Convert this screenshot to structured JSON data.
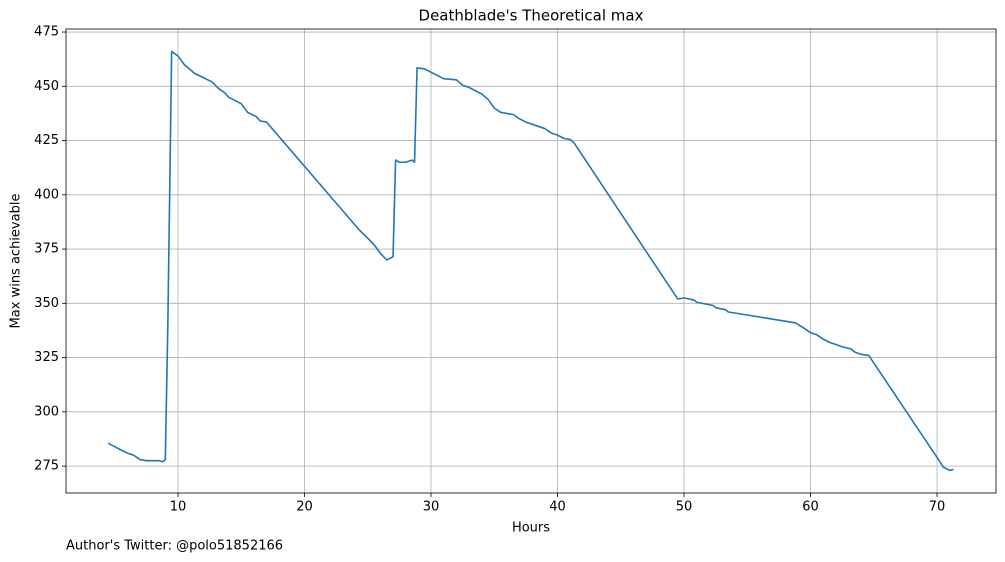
{
  "chart_data": {
    "type": "line",
    "title": "Deathblade's Theoretical max",
    "xlabel": "Hours",
    "ylabel": "Max wins achievable",
    "footnote": "Author's Twitter: @polo51852166",
    "x": [
      4.5,
      5.3,
      6.0,
      6.5,
      7.0,
      7.5,
      8.0,
      8.5,
      8.8,
      9.0,
      9.2,
      9.5,
      10.0,
      10.5,
      11.3,
      12.0,
      12.7,
      13.2,
      13.7,
      14.0,
      15.0,
      15.5,
      16.2,
      16.5,
      17.0,
      24.3,
      25.0,
      25.5,
      26.0,
      26.5,
      27.0,
      27.2,
      27.5,
      28.0,
      28.5,
      28.7,
      28.9,
      29.5,
      30.0,
      30.5,
      31.0,
      32.0,
      32.5,
      33.0,
      33.5,
      34.0,
      34.5,
      35.0,
      35.5,
      36.5,
      37.0,
      37.5,
      38.5,
      39.0,
      39.5,
      40.0,
      40.5,
      41.0,
      41.3,
      49.5,
      50.0,
      50.8,
      51.0,
      52.3,
      52.5,
      53.3,
      53.5,
      58.8,
      59.5,
      60.0,
      60.5,
      61.0,
      61.5,
      62.0,
      62.5,
      63.2,
      63.5,
      64.0,
      64.6,
      70.0,
      70.5,
      71.0,
      71.3
    ],
    "series": [
      {
        "name": "Max wins achievable",
        "color": "#1f77b4",
        "values": [
          285.5,
          283,
          281,
          280,
          278,
          277.5,
          277.5,
          277.5,
          277,
          278,
          340,
          466,
          464,
          460,
          456,
          454,
          452,
          449,
          447,
          445,
          442,
          438,
          436,
          434,
          433.5,
          384,
          380,
          377,
          373,
          370,
          371.5,
          416,
          415,
          415,
          416,
          415,
          458.5,
          458,
          456.5,
          455,
          453.5,
          453,
          450.5,
          449.5,
          448,
          446.5,
          444,
          440,
          438,
          437,
          435,
          433.5,
          431.5,
          430.5,
          428.5,
          427.5,
          426,
          425.5,
          424,
          352,
          352.5,
          351.5,
          350.5,
          349,
          348,
          347,
          346,
          341,
          338.5,
          336.5,
          335.5,
          333.5,
          332,
          331,
          330,
          329,
          327.5,
          326.5,
          326,
          279,
          274.5,
          273,
          273.5
        ]
      }
    ],
    "xlim": [
      1.15,
      74.66
    ],
    "ylim": [
      262.6,
      476.4
    ],
    "xticks": [
      10,
      20,
      30,
      40,
      50,
      60,
      70
    ],
    "yticks": [
      275,
      300,
      325,
      350,
      375,
      400,
      425,
      450,
      475
    ],
    "grid": true
  }
}
